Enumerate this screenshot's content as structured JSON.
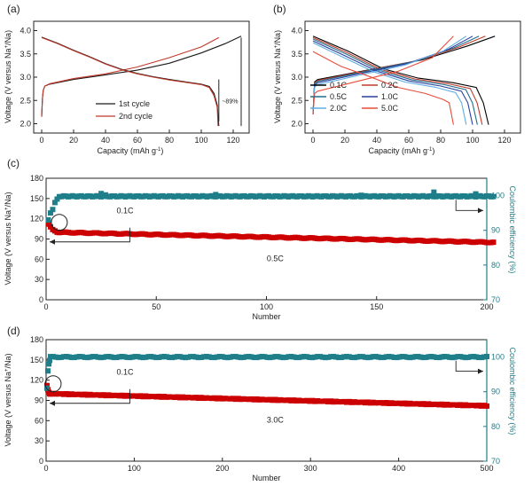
{
  "chart_data": [
    {
      "panel": "(a)",
      "type": "line",
      "xlabel": "Capacity (mAh g",
      "xlabel_sup": "-1",
      "xlabel_end": ")",
      "ylabel": "Voltage (V versus Na",
      "ylabel_sup": "+",
      "ylabel_end": "/Na)",
      "xlim": [
        -5,
        130
      ],
      "ylim": [
        1.8,
        4.2
      ],
      "xticks": [
        "0",
        "20",
        "40",
        "60",
        "80",
        "100",
        "120"
      ],
      "yticks": [
        "2.0",
        "2.5",
        "3.0",
        "3.5",
        "4.0"
      ],
      "annotation": "~89%",
      "series": [
        {
          "name": "1st cycle",
          "color": "#1a1a1a",
          "role": "charge",
          "points": [
            [
              0,
              2.15
            ],
            [
              0.5,
              2.55
            ],
            [
              1,
              2.72
            ],
            [
              2,
              2.81
            ],
            [
              5,
              2.85
            ],
            [
              20,
              2.95
            ],
            [
              40,
              3.05
            ],
            [
              60,
              3.15
            ],
            [
              80,
              3.3
            ],
            [
              100,
              3.52
            ],
            [
              115,
              3.72
            ],
            [
              125,
              3.88
            ]
          ]
        },
        {
          "name": "2nd cycle",
          "color": "#c0392b",
          "role": "charge",
          "points": [
            [
              0,
              2.15
            ],
            [
              0.5,
              2.55
            ],
            [
              1,
              2.72
            ],
            [
              2,
              2.81
            ],
            [
              5,
              2.86
            ],
            [
              20,
              2.97
            ],
            [
              40,
              3.07
            ],
            [
              60,
              3.22
            ],
            [
              80,
              3.42
            ],
            [
              100,
              3.65
            ],
            [
              111,
              3.85
            ]
          ]
        },
        {
          "name": "1st cycle",
          "color": "#1a1a1a",
          "role": "discharge",
          "points": [
            [
              0,
              3.86
            ],
            [
              10,
              3.73
            ],
            [
              20,
              3.58
            ],
            [
              30,
              3.44
            ],
            [
              40,
              3.29
            ],
            [
              50,
              3.17
            ],
            [
              60,
              3.08
            ],
            [
              70,
              3.01
            ],
            [
              80,
              2.95
            ],
            [
              90,
              2.9
            ],
            [
              100,
              2.85
            ],
            [
              105,
              2.8
            ],
            [
              108,
              2.65
            ],
            [
              110,
              2.4
            ],
            [
              111,
              1.95
            ]
          ]
        },
        {
          "name": "2nd cycle",
          "color": "#c0392b",
          "role": "discharge",
          "points": [
            [
              0,
              3.85
            ],
            [
              10,
              3.72
            ],
            [
              20,
              3.57
            ],
            [
              30,
              3.43
            ],
            [
              40,
              3.28
            ],
            [
              50,
              3.16
            ],
            [
              60,
              3.07
            ],
            [
              70,
              3.0
            ],
            [
              80,
              2.94
            ],
            [
              90,
              2.89
            ],
            [
              100,
              2.84
            ],
            [
              105,
              2.78
            ],
            [
              108,
              2.6
            ],
            [
              110,
              2.35
            ],
            [
              110.5,
              1.95
            ]
          ]
        }
      ]
    },
    {
      "panel": "(b)",
      "type": "line",
      "xlabel": "Capacity (mAh g",
      "xlabel_sup": "-1",
      "xlabel_end": ")",
      "ylabel": "Voltage (V versus Na",
      "ylabel_sup": "+",
      "ylabel_end": "/Na)",
      "xlim": [
        -5,
        130
      ],
      "ylim": [
        1.8,
        4.2
      ],
      "xticks": [
        "0",
        "20",
        "40",
        "60",
        "80",
        "100",
        "120"
      ],
      "yticks": [
        "2.0",
        "2.5",
        "3.0",
        "3.5",
        "4.0"
      ],
      "series": [
        {
          "name": "0.1C",
          "color": "#000000",
          "discharge_cap": 110,
          "charge_cap": 114,
          "v_dis_start": 3.88,
          "v_chg_start": 2.95
        },
        {
          "name": "0.2C",
          "color": "#c0392b",
          "discharge_cap": 106,
          "charge_cap": 108,
          "v_dis_start": 3.85,
          "v_chg_start": 2.93
        },
        {
          "name": "0.5C",
          "color": "#1f6f8b",
          "discharge_cap": 103,
          "charge_cap": 104,
          "v_dis_start": 3.82,
          "v_chg_start": 2.91
        },
        {
          "name": "1.0C",
          "color": "#2c3e9e",
          "discharge_cap": 100,
          "charge_cap": 100,
          "v_dis_start": 3.78,
          "v_chg_start": 2.88
        },
        {
          "name": "2.0C",
          "color": "#5dade2",
          "discharge_cap": 96,
          "charge_cap": 96,
          "v_dis_start": 3.74,
          "v_chg_start": 2.84
        },
        {
          "name": "5.0C",
          "color": "#e74c3c",
          "discharge_cap": 88,
          "charge_cap": 88,
          "v_dis_start": 3.55,
          "v_chg_start": 2.7
        }
      ]
    },
    {
      "panel": "(c)",
      "type": "scatter",
      "xlabel": "Number",
      "ylabel": "Voltage (V versus Na",
      "ylabel_sup": "+",
      "ylabel_end": "/Na)",
      "ylabel_right": "Coulombic efficiency (%)",
      "xlim": [
        0,
        200
      ],
      "ylim": [
        0,
        180
      ],
      "ylim_right": [
        70,
        105
      ],
      "xticks": [
        "0",
        "50",
        "100",
        "150",
        "200"
      ],
      "yticks": [
        "0",
        "30",
        "60",
        "90",
        "120",
        "150",
        "180"
      ],
      "yticks_right": [
        "70",
        "80",
        "90",
        "100"
      ],
      "annotations": {
        "low_rate": "0.1C",
        "high_rate": "0.5C"
      },
      "capacity": {
        "color": "#cc0000",
        "initial": [
          112,
          108,
          104,
          102,
          100
        ],
        "start": 100,
        "end": 85,
        "cycles": 198
      },
      "efficiency": {
        "color": "#1e7f8a",
        "initial": [
          93,
          95,
          96,
          98,
          99
        ],
        "steady": 99.8,
        "cycles": 198,
        "outliers": [
          [
            25,
            100.6
          ],
          [
            27,
            100.2
          ],
          [
            77,
            100.3
          ],
          [
            110,
            99.8
          ],
          [
            143,
            100.1
          ],
          [
            176,
            101.0
          ],
          [
            195,
            100.5
          ]
        ]
      }
    },
    {
      "panel": "(d)",
      "type": "scatter",
      "xlabel": "Number",
      "ylabel": "Voltage (V versus Na",
      "ylabel_sup": "+",
      "ylabel_end": "/Na)",
      "ylabel_right": "Coulombic efficiency (%)",
      "xlim": [
        0,
        500
      ],
      "ylim": [
        0,
        180
      ],
      "ylim_right": [
        70,
        105
      ],
      "xticks": [
        "0",
        "100",
        "200",
        "300",
        "400",
        "500"
      ],
      "yticks": [
        "0",
        "30",
        "60",
        "90",
        "120",
        "150",
        "180"
      ],
      "yticks_right": [
        "70",
        "80",
        "90",
        "100"
      ],
      "annotations": {
        "low_rate": "0.1C",
        "high_rate": "3.0C"
      },
      "capacity": {
        "color": "#cc0000",
        "initial": [
          112,
          106,
          102,
          100
        ],
        "start": 100,
        "end": 82,
        "cycles": 496
      },
      "efficiency": {
        "color": "#1e7f8a",
        "initial": [
          91,
          96,
          98,
          99
        ],
        "steady": 100,
        "cycles": 496,
        "outliers": []
      }
    }
  ]
}
